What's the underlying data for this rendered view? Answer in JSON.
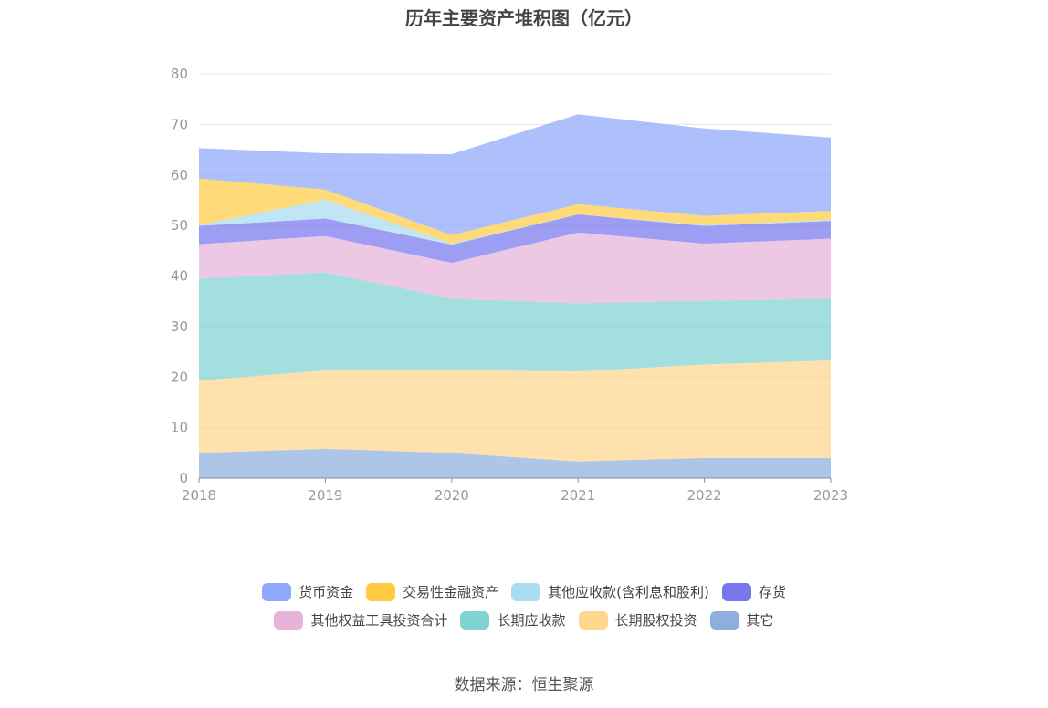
{
  "title": "历年主要资产堆积图（亿元）",
  "source": "数据来源：恒生聚源",
  "chart_data": {
    "type": "area",
    "stacked": true,
    "title": "历年主要资产堆积图（亿元）",
    "x": [
      "2018",
      "2019",
      "2020",
      "2021",
      "2022",
      "2023"
    ],
    "ylim": [
      0,
      80
    ],
    "yticks": [
      0,
      10,
      20,
      30,
      40,
      50,
      60,
      70,
      80
    ],
    "grid": true,
    "legend_position": "bottom",
    "series": [
      {
        "name": "其它",
        "color": "#8eaede",
        "values": [
          5.0,
          5.8,
          5.0,
          3.3,
          4.0,
          4.0
        ]
      },
      {
        "name": "长期股权投资",
        "color": "#fed68e",
        "values": [
          14.3,
          15.5,
          16.4,
          17.8,
          18.5,
          19.3
        ]
      },
      {
        "name": "长期应收款",
        "color": "#7fd3d3",
        "values": [
          20.2,
          19.4,
          14.1,
          13.5,
          12.6,
          12.2
        ]
      },
      {
        "name": "其他权益工具投资合计",
        "color": "#e6b3d9",
        "values": [
          6.8,
          7.2,
          7.1,
          14.0,
          11.3,
          11.9
        ]
      },
      {
        "name": "存货",
        "color": "#7777ee",
        "values": [
          3.6,
          3.5,
          3.6,
          3.6,
          3.5,
          3.5
        ]
      },
      {
        "name": "其他应收款(含利息和股利)",
        "color": "#a8dcf2",
        "values": [
          0.2,
          3.7,
          0.2,
          0.0,
          0.2,
          0.2
        ]
      },
      {
        "name": "交易性金融资产",
        "color": "#ffcc44",
        "values": [
          9.2,
          2.0,
          1.7,
          2.0,
          1.8,
          1.8
        ]
      },
      {
        "name": "货币资金",
        "color": "#8ea8fb",
        "values": [
          6.0,
          7.2,
          16.0,
          17.8,
          17.3,
          14.5
        ]
      }
    ]
  },
  "legend_rows": [
    [
      {
        "name": "货币资金",
        "color": "#8ea8fb"
      },
      {
        "name": "交易性金融资产",
        "color": "#ffcc44"
      },
      {
        "name": "其他应收款(含利息和股利)",
        "color": "#a8dcf2"
      },
      {
        "name": "存货",
        "color": "#7777ee"
      }
    ],
    [
      {
        "name": "其他权益工具投资合计",
        "color": "#e6b3d9"
      },
      {
        "name": "长期应收款",
        "color": "#7fd3d3"
      },
      {
        "name": "长期股权投资",
        "color": "#fed68e"
      },
      {
        "name": "其它",
        "color": "#8eaede"
      }
    ]
  ]
}
